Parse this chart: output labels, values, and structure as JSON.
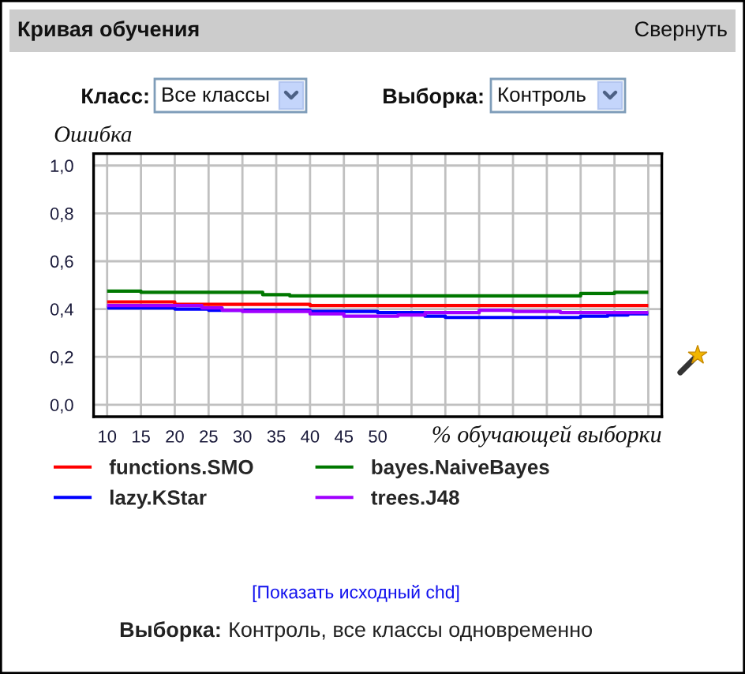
{
  "chart_data": {
    "type": "step",
    "title": "Кривая обучения",
    "xlabel": "% обучающей выборки",
    "ylabel": "Ошибка",
    "xlim": [
      8,
      92
    ],
    "ylim": [
      -0.05,
      1.05
    ],
    "xticks": [
      10,
      15,
      20,
      25,
      30,
      35,
      40,
      45,
      50,
      {
        "value": 55,
        "label": null
      },
      {
        "value": 60,
        "label": null
      },
      {
        "value": 65,
        "label": null
      },
      {
        "value": 70,
        "label": null
      },
      {
        "value": 75,
        "label": null
      },
      {
        "value": 80,
        "label": null
      },
      {
        "value": 85,
        "label": null
      },
      {
        "value": 90,
        "label": null
      }
    ],
    "yticks": [
      {
        "value": 0,
        "label": "0,0"
      },
      {
        "value": 0.2,
        "label": "0,2"
      },
      {
        "value": 0.4,
        "label": "0,4"
      },
      {
        "value": 0.6,
        "label": "0,6"
      },
      {
        "value": 0.8,
        "label": "0,8"
      },
      {
        "value": 1.0,
        "label": "1,0"
      }
    ],
    "grid": true,
    "legend": "bottom",
    "line_style": "solid",
    "series": [
      {
        "name": "functions.SMO",
        "color": "#ff0000",
        "x": [
          10,
          20,
          40,
          90
        ],
        "values": [
          0.43,
          0.42,
          0.415,
          0.415
        ]
      },
      {
        "name": "bayes.NaiveBayes",
        "color": "#007800",
        "x": [
          10,
          15,
          33,
          37,
          80,
          85,
          90
        ],
        "values": [
          0.475,
          0.47,
          0.46,
          0.455,
          0.465,
          0.47,
          0.47
        ]
      },
      {
        "name": "lazy.KStar",
        "color": "#0000ff",
        "x": [
          10,
          20,
          25,
          40,
          50,
          57,
          60,
          80,
          84,
          87,
          90
        ],
        "values": [
          0.405,
          0.4,
          0.395,
          0.39,
          0.385,
          0.37,
          0.365,
          0.37,
          0.375,
          0.38,
          0.38
        ]
      },
      {
        "name": "trees.J48",
        "color": "#a000ff",
        "x": [
          10,
          24,
          27,
          30,
          40,
          45,
          53,
          57,
          65,
          70,
          77,
          90
        ],
        "values": [
          0.415,
          0.405,
          0.395,
          0.39,
          0.38,
          0.37,
          0.375,
          0.385,
          0.395,
          0.39,
          0.385,
          0.385
        ]
      }
    ],
    "annotations": [
      "Свернуть",
      "Класс:",
      "Все классы",
      "Выборка:",
      "Контроль",
      "[Показать исходный chd]",
      "Выборка:",
      "Контроль, все классы одновременно"
    ]
  }
}
